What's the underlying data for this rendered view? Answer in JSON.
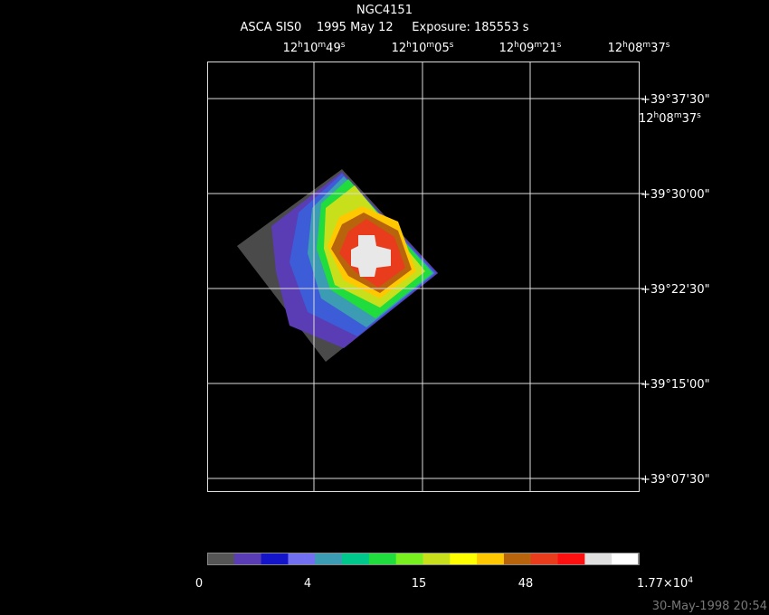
{
  "header": {
    "title": "NGC4151",
    "subtitle": "ASCA SIS0    1995 May 12     Exposure: 185553 s"
  },
  "ra_labels": [
    {
      "parts": [
        "12",
        "h",
        "10",
        "m",
        "49",
        "s"
      ]
    },
    {
      "parts": [
        "12",
        "h",
        "10",
        "m",
        "05",
        "s"
      ]
    },
    {
      "parts": [
        "12",
        "h",
        "09",
        "m",
        "21",
        "s"
      ]
    },
    {
      "parts": [
        "12",
        "h",
        "08",
        "m",
        "37",
        "s"
      ]
    }
  ],
  "dec_labels": [
    "+39°37'30\"",
    "+39°30'00\"",
    "+39°22'30\"",
    "+39°15'00\"",
    "+39°07'30\""
  ],
  "extra_label": {
    "parts": [
      "12",
      "h",
      "08",
      "m",
      "37",
      "s"
    ]
  },
  "colorbar": {
    "colors": [
      "#555555",
      "#5a3cb4",
      "#1414c8",
      "#7070f0",
      "#3c9cb4",
      "#00c88c",
      "#20dc3c",
      "#78f020",
      "#c8e01c",
      "#ffff00",
      "#ffc800",
      "#b8640c",
      "#e83c1c",
      "#ff1010",
      "#e0e0e0",
      "#ffffff"
    ],
    "labels": [
      {
        "parts": [
          "0"
        ]
      },
      {
        "parts": [
          "4"
        ]
      },
      {
        "parts": [
          "15"
        ]
      },
      {
        "parts": [
          "48"
        ]
      },
      {
        "parts": [
          "1.77×10",
          "4"
        ]
      }
    ]
  },
  "timestamp": "30-May-1998 20:54"
}
